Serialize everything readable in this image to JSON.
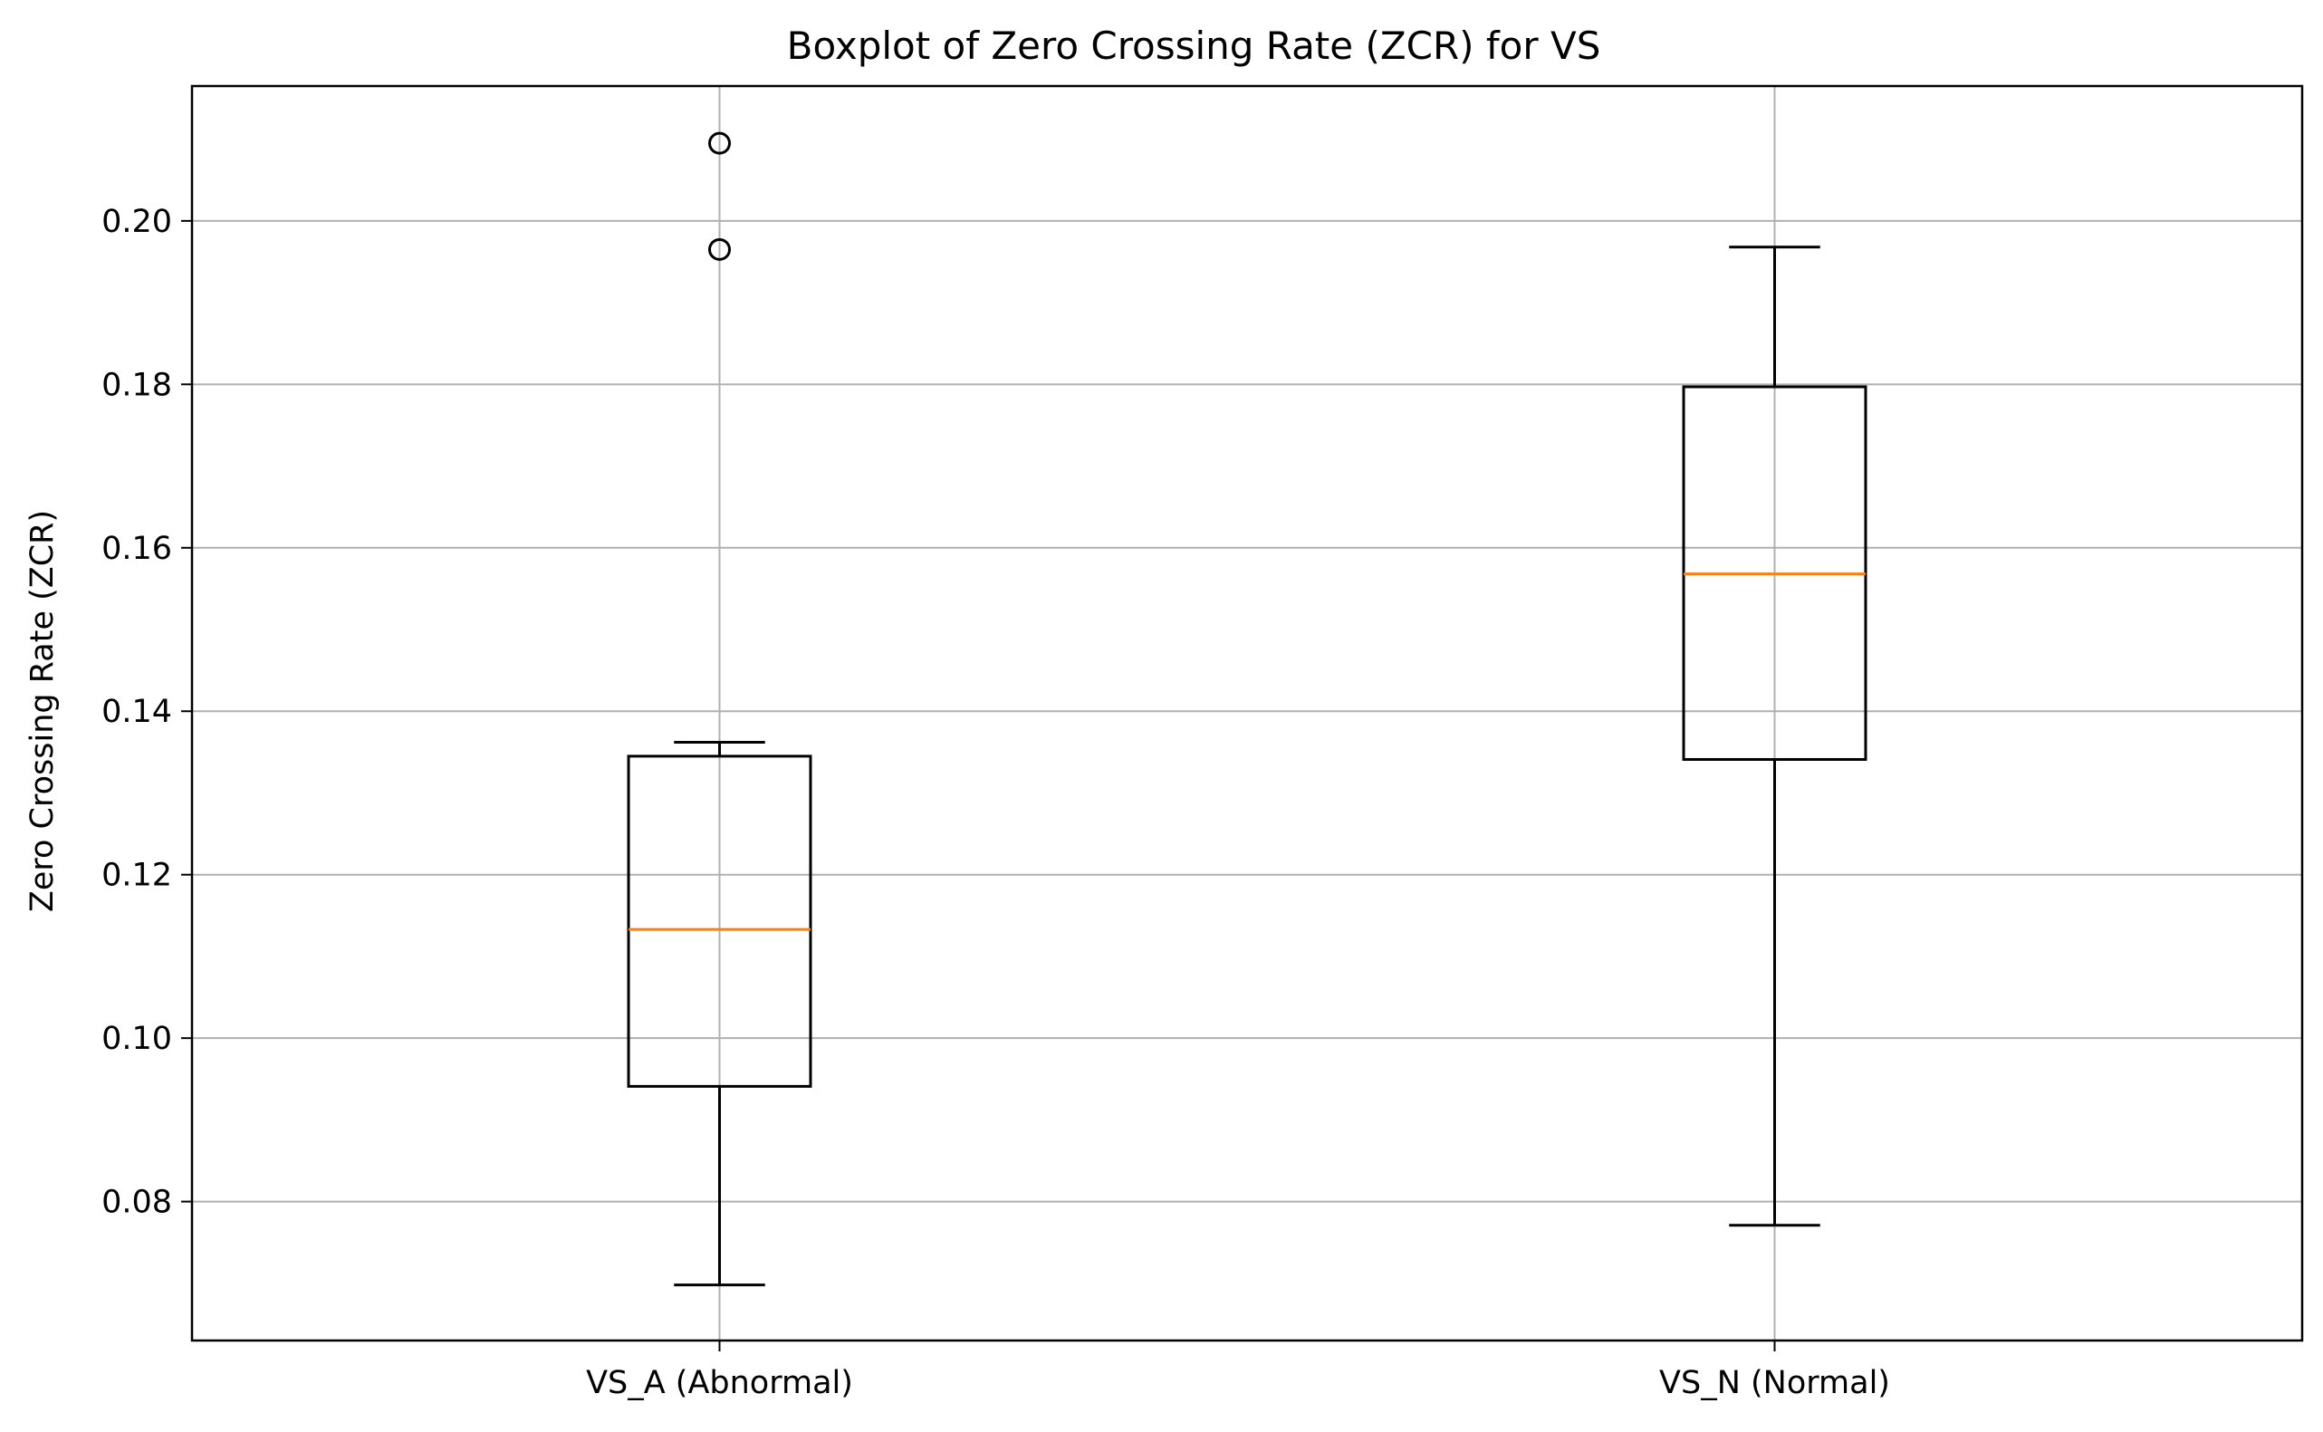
{
  "chart_data": {
    "type": "boxplot",
    "title": "Boxplot of Zero Crossing Rate (ZCR) for VS",
    "xlabel": "",
    "ylabel": "Zero Crossing Rate (ZCR)",
    "ylim": [
      0.063,
      0.2165
    ],
    "yticks": [
      0.08,
      0.1,
      0.12,
      0.14,
      0.16,
      0.18,
      0.2
    ],
    "ytick_labels": [
      "0.08",
      "0.10",
      "0.12",
      "0.14",
      "0.16",
      "0.18",
      "0.20"
    ],
    "grid": true,
    "categories": [
      "VS_A (Abnormal)",
      "VS_N (Normal)"
    ],
    "boxes": [
      {
        "category": "VS_A (Abnormal)",
        "whisker_low": 0.0698,
        "q1": 0.0941,
        "median": 0.1133,
        "q3": 0.1345,
        "whisker_high": 0.1362,
        "outliers": [
          0.1965,
          0.2095
        ]
      },
      {
        "category": "VS_N (Normal)",
        "whisker_low": 0.0771,
        "q1": 0.1341,
        "median": 0.1568,
        "q3": 0.1797,
        "whisker_high": 0.1968,
        "outliers": []
      }
    ],
    "colors": {
      "box": "#000000",
      "median": "#ff7f0e",
      "grid": "#b0b0b0",
      "axes": "#000000"
    }
  }
}
